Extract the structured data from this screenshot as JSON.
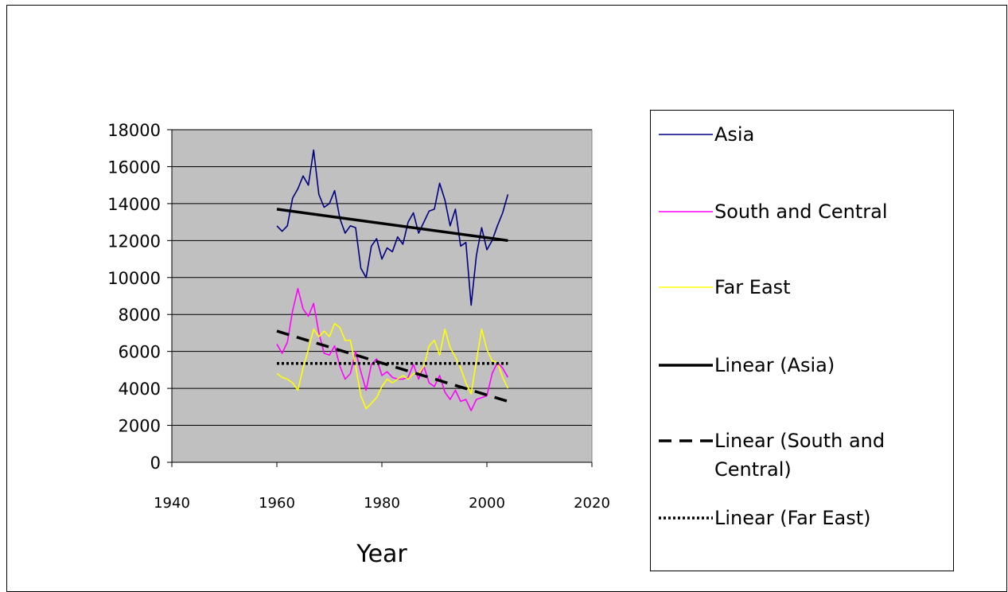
{
  "chart_data": {
    "type": "line",
    "title": "",
    "xlabel": "Year",
    "ylabel": "",
    "xlim": [
      1940,
      2020
    ],
    "ylim": [
      0,
      18000
    ],
    "x_ticks": [
      "1940",
      "1960",
      "1980",
      "2000",
      "2020"
    ],
    "y_ticks": [
      "0",
      "2000",
      "4000",
      "6000",
      "8000",
      "10000",
      "12000",
      "14000",
      "16000",
      "18000"
    ],
    "grid": "horizontal",
    "background": "#c0c0c0",
    "legend_position": "right",
    "series": [
      {
        "name": "Asia",
        "color": "#000080",
        "style": "solid",
        "x": [
          1960,
          1961,
          1962,
          1963,
          1964,
          1965,
          1966,
          1967,
          1968,
          1969,
          1970,
          1971,
          1972,
          1973,
          1974,
          1975,
          1976,
          1977,
          1978,
          1979,
          1980,
          1981,
          1982,
          1983,
          1984,
          1985,
          1986,
          1987,
          1988,
          1989,
          1990,
          1991,
          1992,
          1993,
          1994,
          1995,
          1996,
          1997,
          1998,
          1999,
          2000,
          2001,
          2002,
          2003,
          2004
        ],
        "values": [
          12800,
          12500,
          12800,
          14300,
          14800,
          15500,
          15000,
          16900,
          14500,
          13800,
          14000,
          14700,
          13200,
          12400,
          12800,
          12700,
          10500,
          10000,
          11700,
          12100,
          11000,
          11600,
          11400,
          12200,
          11800,
          13000,
          13500,
          12400,
          13000,
          13600,
          13700,
          15100,
          14200,
          12800,
          13700,
          11700,
          11900,
          8500,
          11200,
          12700,
          11500,
          12000,
          12800,
          13500,
          14500
        ]
      },
      {
        "name": "South and Central",
        "color": "#ff00ff",
        "style": "solid",
        "x": [
          1960,
          1961,
          1962,
          1963,
          1964,
          1965,
          1966,
          1967,
          1968,
          1969,
          1970,
          1971,
          1972,
          1973,
          1974,
          1975,
          1976,
          1977,
          1978,
          1979,
          1980,
          1981,
          1982,
          1983,
          1984,
          1985,
          1986,
          1987,
          1988,
          1989,
          1990,
          1991,
          1992,
          1993,
          1994,
          1995,
          1996,
          1997,
          1998,
          1999,
          2000,
          2001,
          2002,
          2003,
          2004
        ],
        "values": [
          6400,
          5900,
          6500,
          8200,
          9400,
          8300,
          7900,
          8600,
          7000,
          5900,
          5800,
          6300,
          5200,
          4500,
          4800,
          6000,
          4900,
          3900,
          5300,
          5600,
          4700,
          4900,
          4600,
          4500,
          4500,
          4600,
          5300,
          4500,
          5200,
          4300,
          4100,
          4700,
          3800,
          3400,
          3900,
          3300,
          3400,
          2800,
          3400,
          3500,
          3600,
          4800,
          5400,
          5100,
          4600
        ]
      },
      {
        "name": "Far East",
        "color": "#ffff00",
        "style": "solid",
        "x": [
          1960,
          1961,
          1962,
          1963,
          1964,
          1965,
          1966,
          1967,
          1968,
          1969,
          1970,
          1971,
          1972,
          1973,
          1974,
          1975,
          1976,
          1977,
          1978,
          1979,
          1980,
          1981,
          1982,
          1983,
          1984,
          1985,
          1986,
          1987,
          1988,
          1989,
          1990,
          1991,
          1992,
          1993,
          1994,
          1995,
          1996,
          1997,
          1998,
          1999,
          2000,
          2001,
          2002,
          2003,
          2004
        ],
        "values": [
          4800,
          4600,
          4500,
          4300,
          3900,
          5100,
          6100,
          7200,
          6800,
          7100,
          6800,
          7500,
          7300,
          6600,
          6600,
          5200,
          3600,
          2900,
          3200,
          3500,
          4100,
          4500,
          4300,
          4500,
          4700,
          4500,
          4800,
          4800,
          5200,
          6300,
          6600,
          5800,
          7200,
          6200,
          5700,
          5100,
          4300,
          3700,
          5500,
          7200,
          6100,
          5500,
          5400,
          4600,
          4000
        ]
      },
      {
        "name": "Linear (Asia)",
        "color": "#000000",
        "style": "solid",
        "x": [
          1960,
          2004
        ],
        "values": [
          13700,
          12000
        ]
      },
      {
        "name": "Linear (South and Central)",
        "color": "#000000",
        "style": "dashed",
        "x": [
          1960,
          2004
        ],
        "values": [
          7100,
          3300
        ]
      },
      {
        "name": "Linear (Far East)",
        "color": "#000000",
        "style": "dotted",
        "x": [
          1960,
          2004
        ],
        "values": [
          5350,
          5350
        ]
      }
    ]
  },
  "legend": {
    "items": [
      {
        "label": "Asia"
      },
      {
        "label": "South and Central"
      },
      {
        "label": "Far East"
      },
      {
        "label": "Linear (Asia)"
      },
      {
        "label": "Linear (South and\nCentral)"
      },
      {
        "label": "Linear (Far East)"
      }
    ]
  }
}
